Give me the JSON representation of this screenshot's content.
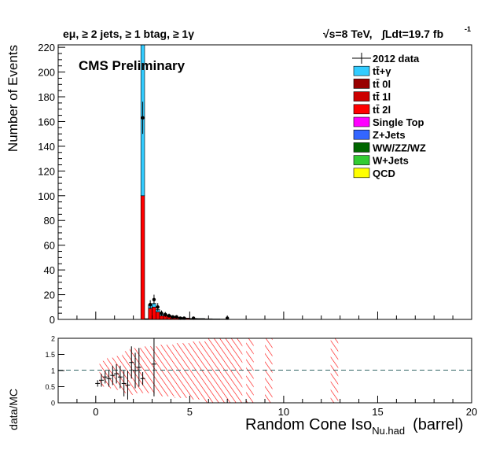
{
  "header": {
    "selection": "eμ, ≥ 2 jets, ≥ 1 btag, ≥ 1γ",
    "energy": "√s=8 TeV,",
    "lumi": "∫Ldt=19.7 fb",
    "lumi_sup": "-1"
  },
  "label": "CMS Preliminary",
  "chart_data": [
    {
      "type": "bar",
      "stacked": true,
      "ylabel": "Number of Events",
      "xlim": [
        -2,
        20
      ],
      "ylim": [
        0,
        222
      ],
      "yticks": [
        "0",
        "20",
        "40",
        "60",
        "80",
        "100",
        "120",
        "140",
        "160",
        "180",
        "200",
        "220"
      ],
      "colors": {
        "ttgamma": "#33ccff",
        "tt0l": "#990000",
        "tt1l": "#cc0000",
        "tt2l": "#ff0000",
        "singletop": "#ff00ff",
        "zjets": "#3366ff",
        "vv": "#006600",
        "wjets": "#33cc33",
        "qcd": "#ffff00",
        "data": "#000000"
      },
      "legend": {
        "placement": "top-right",
        "entries": [
          {
            "key": "data",
            "label": "2012 data",
            "style": "marker"
          },
          {
            "key": "ttgamma",
            "label": "tt̄+γ",
            "style": "box"
          },
          {
            "key": "tt0l",
            "label": "tt̄ 0l",
            "style": "box"
          },
          {
            "key": "tt1l",
            "label": "tt̄ 1l",
            "style": "box"
          },
          {
            "key": "tt2l",
            "label": "tt̄ 2l",
            "style": "box"
          },
          {
            "key": "singletop",
            "label": "Single Top",
            "style": "box"
          },
          {
            "key": "zjets",
            "label": "Z+Jets",
            "style": "box"
          },
          {
            "key": "vv",
            "label": "WW/ZZ/WZ",
            "style": "box"
          },
          {
            "key": "wjets",
            "label": "W+Jets",
            "style": "box"
          },
          {
            "key": "qcd",
            "label": "QCD",
            "style": "box"
          }
        ]
      },
      "bins": [
        {
          "x0": 2.4,
          "x1": 2.6,
          "tt2l": 100,
          "ttgamma": 122
        },
        {
          "x0": 2.6,
          "x1": 2.8,
          "tt2l": 0.3,
          "ttgamma": 0.3
        },
        {
          "x0": 2.8,
          "x1": 3.0,
          "tt2l": 9,
          "ttgamma": 3
        },
        {
          "x0": 3.0,
          "x1": 3.2,
          "tt2l": 10,
          "ttgamma": 3
        },
        {
          "x0": 3.2,
          "x1": 3.4,
          "tt2l": 6,
          "ttgamma": 2
        },
        {
          "x0": 3.4,
          "x1": 3.6,
          "tt2l": 3,
          "ttgamma": 1
        },
        {
          "x0": 3.6,
          "x1": 3.8,
          "tt2l": 3,
          "ttgamma": 1
        },
        {
          "x0": 3.8,
          "x1": 4.0,
          "tt2l": 2.5,
          "ttgamma": 0.8
        },
        {
          "x0": 4.0,
          "x1": 4.2,
          "tt2l": 2,
          "ttgamma": 0.6
        },
        {
          "x0": 4.2,
          "x1": 4.4,
          "tt2l": 1.5,
          "ttgamma": 0.5
        },
        {
          "x0": 4.4,
          "x1": 4.6,
          "tt2l": 1.2,
          "ttgamma": 0.4
        },
        {
          "x0": 4.6,
          "x1": 4.8,
          "tt2l": 1,
          "ttgamma": 0.3
        },
        {
          "x0": 4.8,
          "x1": 5.0,
          "tt2l": 0.8,
          "ttgamma": 0.3
        },
        {
          "x0": 5.0,
          "x1": 5.4,
          "tt2l": 0.6,
          "ttgamma": 0.2
        },
        {
          "x0": 5.4,
          "x1": 5.8,
          "tt2l": 0.5,
          "ttgamma": 0.2
        },
        {
          "x0": 5.8,
          "x1": 6.2,
          "tt2l": 0.4,
          "ttgamma": 0.1
        },
        {
          "x0": 6.2,
          "x1": 6.6,
          "tt2l": 0.3,
          "ttgamma": 0.1
        },
        {
          "x0": 6.6,
          "x1": 7.0,
          "tt2l": 0.2,
          "ttgamma": 0.1
        }
      ],
      "data_points": [
        {
          "x": 2.5,
          "y": 163,
          "err": 13
        },
        {
          "x": 2.9,
          "y": 12,
          "err": 3.5
        },
        {
          "x": 3.1,
          "y": 16,
          "err": 4
        },
        {
          "x": 3.3,
          "y": 10,
          "err": 3.2
        },
        {
          "x": 3.5,
          "y": 5,
          "err": 2.2
        },
        {
          "x": 3.7,
          "y": 4,
          "err": 2
        },
        {
          "x": 3.9,
          "y": 3,
          "err": 1.7
        },
        {
          "x": 4.1,
          "y": 2,
          "err": 1.4
        },
        {
          "x": 4.3,
          "y": 2,
          "err": 1.4
        },
        {
          "x": 4.5,
          "y": 1,
          "err": 1
        },
        {
          "x": 4.7,
          "y": 1,
          "err": 1
        },
        {
          "x": 5.2,
          "y": 1,
          "err": 1
        },
        {
          "x": 7.0,
          "y": 1,
          "err": 1
        }
      ]
    },
    {
      "type": "scatter",
      "ylabel": "data/MC",
      "xlabel": "Random Cone Iso",
      "xlabel_sub": "Nu.had",
      "xlabel_suffix": "(barrel)",
      "xlim": [
        -2,
        20
      ],
      "ylim": [
        0,
        2
      ],
      "xticks": [
        "0",
        "5",
        "10",
        "15",
        "20"
      ],
      "yticks": [
        "0",
        "0.5",
        "1",
        "1.5",
        "2"
      ],
      "reference_line": 1,
      "points": [
        {
          "x": 0.1,
          "y": 0.6,
          "err": 0.1
        },
        {
          "x": 0.3,
          "y": 0.7,
          "err": 0.2
        },
        {
          "x": 0.5,
          "y": 0.8,
          "err": 0.2
        },
        {
          "x": 0.7,
          "y": 0.75,
          "err": 0.25
        },
        {
          "x": 0.9,
          "y": 0.85,
          "err": 0.3
        },
        {
          "x": 1.1,
          "y": 0.9,
          "err": 0.3
        },
        {
          "x": 1.3,
          "y": 0.8,
          "err": 0.35
        },
        {
          "x": 1.5,
          "y": 0.6,
          "err": 0.4
        },
        {
          "x": 1.7,
          "y": 0.55,
          "err": 0.45
        },
        {
          "x": 1.9,
          "y": 1.25,
          "err": 0.5
        },
        {
          "x": 2.1,
          "y": 1.0,
          "err": 0.55
        },
        {
          "x": 2.3,
          "y": 1.1,
          "err": 0.6
        },
        {
          "x": 2.5,
          "y": 0.75,
          "err": 0.2
        },
        {
          "x": 3.1,
          "y": 1.2,
          "err": 1.0
        }
      ],
      "uncertainty_bands": [
        {
          "x0": 0.2,
          "x1": 0.6,
          "lo": 0.5,
          "hi": 1.3
        },
        {
          "x0": 0.6,
          "x1": 1.0,
          "lo": 0.45,
          "hi": 1.4
        },
        {
          "x0": 1.0,
          "x1": 1.4,
          "lo": 0.4,
          "hi": 1.45
        },
        {
          "x0": 1.4,
          "x1": 1.8,
          "lo": 0.3,
          "hi": 1.6
        },
        {
          "x0": 1.8,
          "x1": 2.2,
          "lo": 0.25,
          "hi": 1.7
        },
        {
          "x0": 2.2,
          "x1": 2.6,
          "lo": 0.3,
          "hi": 1.7
        },
        {
          "x0": 2.6,
          "x1": 3.4,
          "lo": 0.3,
          "hi": 1.75
        },
        {
          "x0": 3.4,
          "x1": 4.2,
          "lo": 0.2,
          "hi": 1.8
        },
        {
          "x0": 4.2,
          "x1": 5.0,
          "lo": 0.15,
          "hi": 1.85
        },
        {
          "x0": 5.0,
          "x1": 5.8,
          "lo": 0.1,
          "hi": 1.9
        },
        {
          "x0": 5.8,
          "x1": 6.6,
          "lo": 0,
          "hi": 2
        },
        {
          "x0": 6.6,
          "x1": 7.4,
          "lo": 0,
          "hi": 2
        },
        {
          "x0": 7.4,
          "x1": 7.8,
          "lo": 0,
          "hi": 2
        },
        {
          "x0": 8.0,
          "x1": 8.4,
          "lo": 0,
          "hi": 2
        },
        {
          "x0": 9.0,
          "x1": 9.4,
          "lo": 0,
          "hi": 2
        },
        {
          "x0": 12.5,
          "x1": 12.9,
          "lo": 0,
          "hi": 2
        }
      ]
    }
  ]
}
